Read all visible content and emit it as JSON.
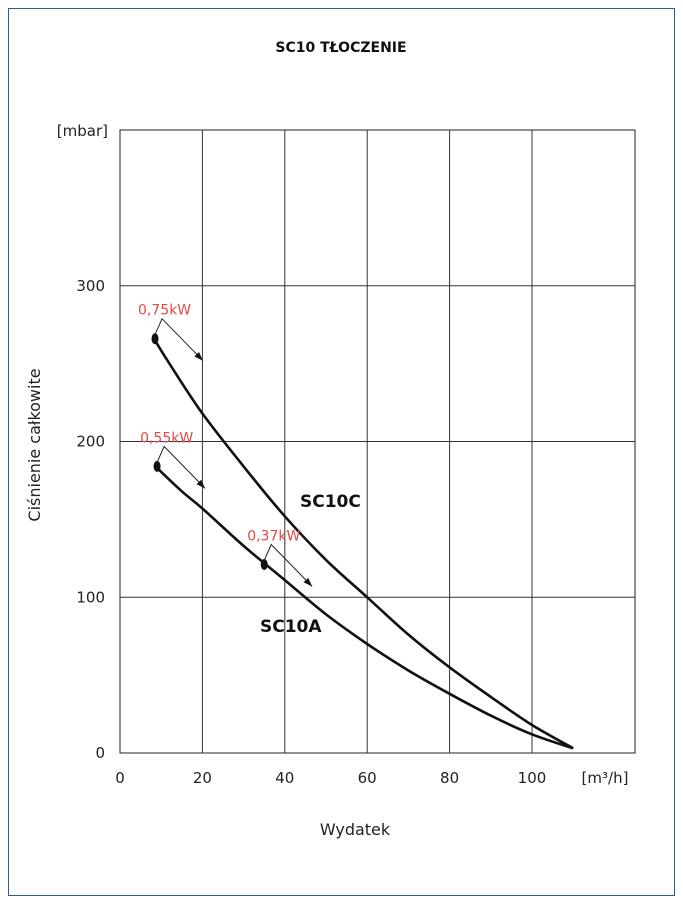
{
  "chart_data": {
    "type": "line",
    "title": "SC10 TŁOCZENIE",
    "xlabel": "Wydatek",
    "ylabel": "Ciśnienie całkowite",
    "x_unit": "[m³/h]",
    "y_unit": "[mbar]",
    "xlim": [
      0,
      125
    ],
    "ylim": [
      0,
      400
    ],
    "x_ticks": [
      0,
      20,
      40,
      60,
      80,
      100
    ],
    "y_ticks": [
      0,
      100,
      200,
      300
    ],
    "grid": true,
    "legend": "none",
    "series": [
      {
        "name": "SC10C",
        "color": "#111111",
        "x": [
          8.5,
          12,
          20,
          30,
          40,
          50,
          60,
          70,
          80,
          90,
          100,
          110
        ],
        "y": [
          265,
          250,
          218,
          184,
          152,
          124,
          100,
          76,
          55,
          36,
          18,
          3
        ]
      },
      {
        "name": "SC10A",
        "color": "#111111",
        "x": [
          9,
          15,
          20,
          30,
          40,
          50,
          60,
          70,
          80,
          90,
          100,
          110
        ],
        "y": [
          183,
          168,
          157,
          133,
          111,
          89,
          70,
          53,
          38,
          24,
          12,
          3
        ]
      }
    ],
    "power_points": [
      {
        "label": "0,75kW",
        "x": 8.5,
        "y": 266,
        "color": "#e04a4a"
      },
      {
        "label": "0,55kW",
        "x": 9,
        "y": 184,
        "color": "#e04a4a"
      },
      {
        "label": "0,37kW",
        "x": 35,
        "y": 121,
        "color": "#e04a4a"
      }
    ]
  }
}
